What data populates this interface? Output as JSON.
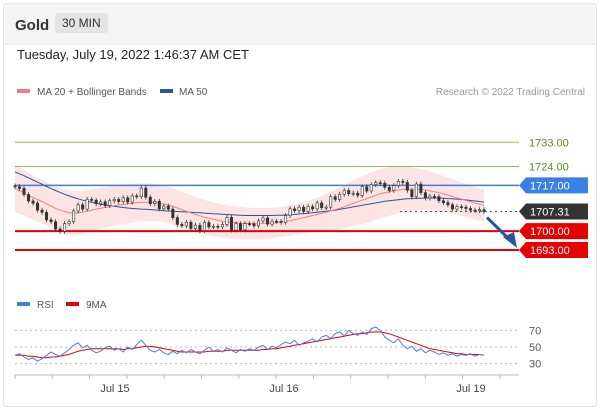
{
  "header": {
    "title": "Gold",
    "timeframe": "30 MIN"
  },
  "timestamp": "Tuesday, July 19, 2022 1:46:37 AM CET",
  "legend_main": [
    {
      "label": "MA 20 + Bollinger Bands",
      "color": "#f08080"
    },
    {
      "label": "MA 50",
      "color": "#2a5599"
    }
  ],
  "legend_rsi": [
    {
      "label": "RSI",
      "color": "#4a7fd6"
    },
    {
      "label": "9MA",
      "color": "#e00000"
    }
  ],
  "credit": "Research © 2022 Trading Central",
  "colors": {
    "candle": "#333333",
    "band_fill": "#fde4e4",
    "ma20": "#f08080",
    "ma50": "#2a5599",
    "resistance_green": "#8cc152",
    "pivot_blue": "#3a7ee6",
    "support_red": "#e60000",
    "arrow": "#2a5599",
    "grid": "#eaeaea"
  },
  "chart_data": [
    {
      "type": "candlestick",
      "title": "",
      "ylim": [
        1680,
        1745
      ],
      "x_labels": [
        "Jul 15",
        "Jul 16",
        "Jul 19"
      ],
      "y_scale_side": "right",
      "levels": [
        {
          "value": 1733.0,
          "label": "1733.00",
          "style": "green-line"
        },
        {
          "value": 1724.0,
          "label": "1724.00",
          "style": "green-line"
        },
        {
          "value": 1717.0,
          "label": "1717.00",
          "style": "blue-line-tag"
        },
        {
          "value": 1707.31,
          "label": "1707.31",
          "style": "last-price-tag"
        },
        {
          "value": 1700.0,
          "label": "1700.00",
          "style": "red-line-tag"
        },
        {
          "value": 1693.0,
          "label": "1693.00",
          "style": "red-line-tag"
        }
      ],
      "close": [
        1716.5,
        1715.9,
        1713.6,
        1711.2,
        1710.4,
        1707.8,
        1707.0,
        1704.2,
        1703.5,
        1700.8,
        1699.9,
        1702.8,
        1703.6,
        1707.5,
        1709.8,
        1708.2,
        1711.8,
        1711.5,
        1710.2,
        1710.9,
        1709.5,
        1711.3,
        1711.8,
        1711.0,
        1712.4,
        1710.8,
        1713.1,
        1712.8,
        1716.0,
        1712.6,
        1710.2,
        1711.1,
        1708.3,
        1709.3,
        1708.2,
        1705.0,
        1702.5,
        1702.0,
        1703.3,
        1701.0,
        1702.2,
        1700.2,
        1703.2,
        1701.6,
        1701.8,
        1701.6,
        1702.5,
        1705.1,
        1700.4,
        1702.8,
        1700.5,
        1702.8,
        1702.7,
        1702.0,
        1703.8,
        1704.9,
        1702.6,
        1703.7,
        1703.6,
        1703.3,
        1705.8,
        1708.3,
        1707.6,
        1708.9,
        1707.3,
        1709.1,
        1708.3,
        1710.5,
        1708.7,
        1708.9,
        1712.8,
        1711.8,
        1713.7,
        1715.1,
        1713.9,
        1714.1,
        1713.3,
        1716.5,
        1714.9,
        1717.3,
        1718.0,
        1717.8,
        1716.3,
        1715.1,
        1716.9,
        1718.5,
        1718.1,
        1715.2,
        1712.8,
        1717.5,
        1714.3,
        1712.3,
        1713.0,
        1712.8,
        1711.3,
        1710.6,
        1709.8,
        1708.2,
        1709.1,
        1708.9,
        1708.4,
        1707.8,
        1707.6,
        1708.0,
        1707.3
      ],
      "ma20": [
        1715.8,
        1715.1,
        1714.2,
        1713.3,
        1712.5,
        1711.8,
        1711.0,
        1710.1,
        1709.3,
        1708.5,
        1707.8,
        1707.3,
        1706.9,
        1706.7,
        1706.8,
        1707.0,
        1707.4,
        1707.8,
        1708.2,
        1708.5,
        1708.8,
        1709.1,
        1709.4,
        1709.7,
        1709.9,
        1710.2,
        1710.4,
        1710.6,
        1710.7,
        1710.7,
        1710.7,
        1710.6,
        1710.4,
        1710.1,
        1709.7,
        1709.2,
        1708.6,
        1708.0,
        1707.4,
        1706.8,
        1706.2,
        1705.7,
        1705.2,
        1704.8,
        1704.4,
        1704.0,
        1703.7,
        1703.5,
        1703.3,
        1703.1,
        1703.0,
        1702.9,
        1702.8,
        1702.8,
        1702.8,
        1702.9,
        1702.9,
        1703.0,
        1703.2,
        1703.4,
        1703.6,
        1703.9,
        1704.3,
        1704.6,
        1705.0,
        1705.4,
        1705.8,
        1706.2,
        1706.6,
        1707.0,
        1707.5,
        1708.0,
        1708.5,
        1709.1,
        1709.7,
        1710.3,
        1710.9,
        1711.5,
        1712.1,
        1712.7,
        1713.3,
        1713.9,
        1714.3,
        1714.7,
        1715.0,
        1715.3,
        1715.5,
        1715.6,
        1715.6,
        1715.6,
        1715.5,
        1715.3,
        1715.0,
        1714.7,
        1714.3,
        1713.9,
        1713.4,
        1712.9,
        1712.4,
        1711.9,
        1711.4,
        1710.9,
        1710.4,
        1710.0,
        1709.6
      ],
      "bb_upper": [
        1724.6,
        1723.7,
        1722.7,
        1721.7,
        1720.8,
        1719.9,
        1719.1,
        1718.2,
        1717.4,
        1716.6,
        1716.0,
        1715.5,
        1715.2,
        1714.9,
        1714.9,
        1715.0,
        1715.3,
        1715.6,
        1715.9,
        1716.2,
        1716.4,
        1716.7,
        1716.9,
        1717.1,
        1717.3,
        1717.5,
        1717.6,
        1717.7,
        1717.8,
        1717.8,
        1717.7,
        1717.5,
        1717.3,
        1716.9,
        1716.5,
        1716.0,
        1715.4,
        1714.7,
        1714.1,
        1713.4,
        1712.8,
        1712.2,
        1711.6,
        1711.1,
        1710.7,
        1710.3,
        1709.9,
        1709.6,
        1709.4,
        1709.2,
        1709.0,
        1708.8,
        1708.7,
        1708.6,
        1708.6,
        1708.6,
        1708.6,
        1708.7,
        1708.8,
        1709.0,
        1709.2,
        1709.5,
        1709.9,
        1710.3,
        1710.8,
        1711.3,
        1711.8,
        1712.4,
        1713.1,
        1713.8,
        1714.6,
        1715.4,
        1716.3,
        1717.1,
        1718.0,
        1718.8,
        1719.6,
        1720.4,
        1721.1,
        1721.8,
        1722.4,
        1723.0,
        1723.4,
        1723.7,
        1723.9,
        1724.0,
        1724.0,
        1723.9,
        1723.7,
        1723.4,
        1723.1,
        1722.7,
        1722.2,
        1721.7,
        1721.2,
        1720.6,
        1720.0,
        1719.4,
        1718.8,
        1718.2,
        1717.6,
        1717.0,
        1716.5,
        1716.0,
        1715.6
      ],
      "bb_lower": [
        1707.0,
        1706.5,
        1705.7,
        1704.9,
        1704.2,
        1703.7,
        1702.9,
        1702.0,
        1701.2,
        1700.4,
        1699.6,
        1699.1,
        1698.6,
        1698.5,
        1698.7,
        1699.0,
        1699.5,
        1700.0,
        1700.5,
        1700.8,
        1701.2,
        1701.5,
        1701.9,
        1702.3,
        1702.5,
        1702.9,
        1703.2,
        1703.5,
        1703.6,
        1703.6,
        1703.7,
        1703.7,
        1703.5,
        1703.3,
        1702.9,
        1702.4,
        1701.8,
        1701.3,
        1700.7,
        1700.2,
        1699.6,
        1699.2,
        1698.8,
        1698.5,
        1698.1,
        1697.7,
        1697.5,
        1697.4,
        1697.2,
        1697.0,
        1697.0,
        1697.0,
        1696.9,
        1697.0,
        1697.0,
        1697.2,
        1697.2,
        1697.3,
        1697.6,
        1697.8,
        1698.0,
        1698.3,
        1698.7,
        1698.9,
        1699.2,
        1699.5,
        1699.8,
        1700.0,
        1700.1,
        1700.2,
        1700.4,
        1700.6,
        1700.7,
        1701.1,
        1701.4,
        1701.8,
        1702.2,
        1702.6,
        1703.1,
        1703.6,
        1704.2,
        1704.8,
        1705.2,
        1705.7,
        1706.1,
        1706.6,
        1707.0,
        1707.3,
        1707.5,
        1707.8,
        1707.9,
        1707.9,
        1707.8,
        1707.7,
        1707.4,
        1707.2,
        1706.8,
        1706.4,
        1706.0,
        1705.6,
        1705.2,
        1704.8,
        1704.3,
        1704.0,
        1703.6
      ],
      "ma50": [
        1722.0,
        1721.3,
        1720.6,
        1719.8,
        1719.0,
        1718.2,
        1717.4,
        1716.6,
        1715.8,
        1715.1,
        1714.4,
        1713.7,
        1713.1,
        1712.5,
        1712.0,
        1711.5,
        1711.1,
        1710.7,
        1710.3,
        1710.0,
        1709.7,
        1709.4,
        1709.2,
        1709.0,
        1708.8,
        1708.6,
        1708.4,
        1708.3,
        1708.2,
        1708.1,
        1708.0,
        1707.9,
        1707.8,
        1707.6,
        1707.5,
        1707.4,
        1707.3,
        1707.2,
        1707.1,
        1707.0,
        1706.9,
        1706.8,
        1706.7,
        1706.6,
        1706.5,
        1706.4,
        1706.3,
        1706.2,
        1706.1,
        1706.0,
        1705.9,
        1705.8,
        1705.8,
        1705.8,
        1705.8,
        1705.8,
        1705.8,
        1705.8,
        1705.9,
        1705.9,
        1706.0,
        1706.1,
        1706.2,
        1706.4,
        1706.5,
        1706.7,
        1706.8,
        1707.0,
        1707.2,
        1707.4,
        1707.6,
        1707.8,
        1708.1,
        1708.4,
        1708.7,
        1709.0,
        1709.3,
        1709.6,
        1709.9,
        1710.2,
        1710.5,
        1710.8,
        1711.1,
        1711.3,
        1711.5,
        1711.7,
        1711.9,
        1712.0,
        1712.1,
        1712.2,
        1712.2,
        1712.3,
        1712.3,
        1712.3,
        1712.3,
        1712.2,
        1712.1,
        1712.0,
        1711.9,
        1711.8,
        1711.6,
        1711.4,
        1711.2,
        1711.0,
        1710.8
      ]
    },
    {
      "type": "line",
      "title": "RSI",
      "ylim": [
        20,
        80
      ],
      "yticks": [
        "70",
        "50",
        "30"
      ],
      "series": [
        {
          "name": "RSI",
          "values": [
            40,
            42,
            38,
            35,
            37,
            33,
            36,
            40,
            44,
            41,
            39,
            43,
            47,
            52,
            55,
            49,
            52,
            46,
            43,
            45,
            49,
            51,
            46,
            48,
            44,
            50,
            47,
            53,
            58,
            52,
            46,
            44,
            47,
            43,
            41,
            45,
            42,
            46,
            43,
            47,
            44,
            42,
            46,
            50,
            45,
            47,
            44,
            49,
            46,
            43,
            47,
            45,
            48,
            46,
            50,
            52,
            47,
            51,
            49,
            53,
            56,
            54,
            58,
            52,
            55,
            57,
            60,
            56,
            62,
            64,
            60,
            66,
            68,
            63,
            70,
            66,
            64,
            68,
            65,
            72,
            74,
            70,
            62,
            58,
            55,
            60,
            52,
            48,
            51,
            45,
            48,
            43,
            46,
            44,
            41,
            43,
            40,
            42,
            39,
            41,
            40,
            42,
            39,
            41,
            40
          ]
        },
        {
          "name": "9MA",
          "values": [
            40,
            40,
            40,
            39,
            39,
            38,
            37,
            37,
            38,
            38,
            39,
            40,
            41,
            43,
            45,
            46,
            47,
            48,
            48,
            48,
            48,
            48,
            48,
            48,
            47,
            48,
            48,
            49,
            50,
            51,
            51,
            50,
            49,
            48,
            47,
            46,
            45,
            44,
            44,
            44,
            44,
            44,
            44,
            45,
            45,
            45,
            45,
            46,
            46,
            46,
            46,
            46,
            46,
            46,
            46,
            47,
            47,
            48,
            48,
            49,
            50,
            51,
            52,
            53,
            54,
            55,
            56,
            57,
            58,
            59,
            60,
            61,
            62,
            63,
            64,
            65,
            66,
            66,
            67,
            68,
            68,
            68,
            67,
            66,
            64,
            62,
            60,
            58,
            56,
            54,
            52,
            50,
            48,
            47,
            46,
            45,
            44,
            43,
            42,
            42,
            41,
            41,
            41,
            41,
            40
          ]
        }
      ]
    }
  ]
}
